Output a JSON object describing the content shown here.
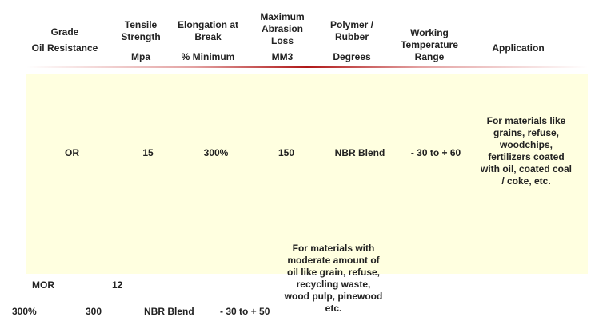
{
  "header": {
    "grade": "Grade",
    "oil_resistance": "Oil Resistance",
    "tensile_strength": "Tensile Strength",
    "tensile_unit": "Mpa",
    "elongation": "Elongation at Break",
    "elongation_unit": "% Minimum",
    "abrasion": "Maximum Abrasion Loss",
    "abrasion_unit": "MM3",
    "polymer": "Polymer / Rubber",
    "polymer_unit": "Degrees",
    "working_temp": "Working Temperature Range",
    "application": "Application"
  },
  "row_or": {
    "grade": "OR",
    "tensile": "15",
    "elongation": "300%",
    "abrasion": "150",
    "polymer": "NBR Blend",
    "temperature": "- 30 to + 60",
    "application": "For materials like grains, refuse, woodchips, fertilizers coated with oil, coated coal / coke, etc."
  },
  "row_mor": {
    "grade": "MOR",
    "tensile": "12",
    "elongation": "300%",
    "abrasion": "300",
    "polymer": "NBR Blend",
    "temperature": "- 30 to + 50",
    "application": "For materials with moderate amount of oil like grain, refuse, recycling waste, wood pulp, pinewood etc."
  },
  "colors": {
    "band_background": "#ffffe0",
    "header_rule": "#b01818",
    "text": "#222222"
  }
}
